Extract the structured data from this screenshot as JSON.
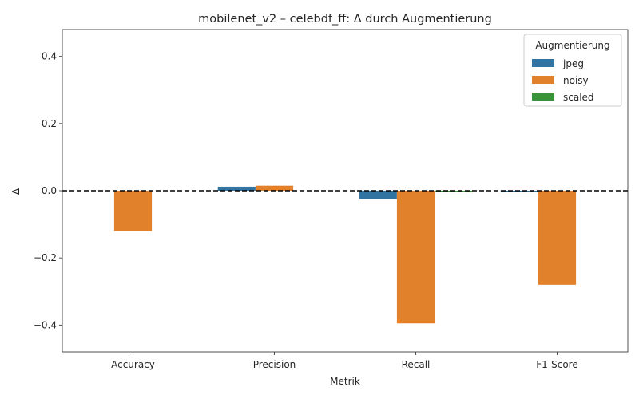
{
  "chart_data": {
    "type": "bar",
    "title": "mobilenet_v2 – celebdf_ff: Δ durch Augmentierung",
    "xlabel": "Metrik",
    "ylabel": "Δ",
    "categories": [
      "Accuracy",
      "Precision",
      "Recall",
      "F1-Score"
    ],
    "series": [
      {
        "name": "jpeg",
        "color": "#3274a1",
        "values": [
          0.0,
          0.012,
          -0.025,
          -0.004
        ]
      },
      {
        "name": "noisy",
        "color": "#e1812c",
        "values": [
          -0.12,
          0.015,
          -0.395,
          -0.28
        ]
      },
      {
        "name": "scaled",
        "color": "#3a923a",
        "values": [
          0.0,
          0.0,
          -0.004,
          0.0
        ]
      }
    ],
    "ylim": [
      -0.48,
      0.48
    ],
    "yticks": [
      -0.4,
      -0.2,
      0.0,
      0.2,
      0.4
    ],
    "ytick_labels": [
      "−0.4",
      "−0.2",
      "0.0",
      "0.2",
      "0.4"
    ],
    "reference_line": {
      "y": 0,
      "style": "dashed",
      "color": "#000000"
    },
    "legend": {
      "title": "Augmentierung",
      "position": "top-right"
    },
    "grid": false
  }
}
